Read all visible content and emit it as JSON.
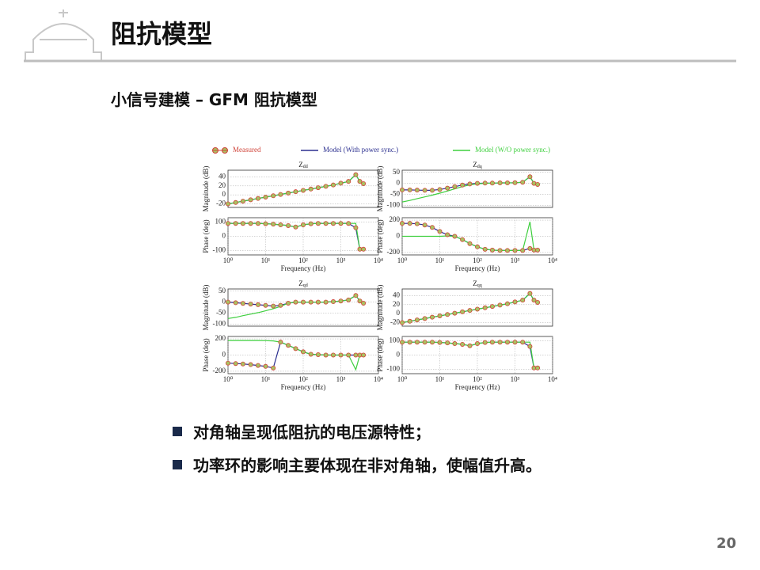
{
  "header": {
    "title": "阻抗模型"
  },
  "subtitle": "小信号建模 – GFM 阻抗模型",
  "legend": [
    {
      "name": "Measured",
      "color": "#d0443a",
      "fill": "#a9c261"
    },
    {
      "name": "Model (With power sync.)",
      "color": "#2b2f8f"
    },
    {
      "name": "Model (W/O power sync.)",
      "color": "#3fcf3f"
    }
  ],
  "chart_data": [
    {
      "type": "line",
      "title": "Zdd",
      "ylabel": "Magnitude (dB)",
      "xscale": "log",
      "xlim": [
        1,
        10000
      ],
      "ylim": [
        -28,
        55
      ],
      "yticks": [
        40,
        20,
        0,
        -20
      ],
      "grid": true,
      "x": [
        1,
        1.6,
        2.5,
        4,
        6.3,
        10,
        16,
        25,
        40,
        63,
        100,
        160,
        250,
        400,
        630,
        1000,
        1600,
        2500,
        3200,
        4000
      ],
      "series": [
        {
          "values": [
            -20,
            -17,
            -14,
            -11,
            -8,
            -5,
            -2,
            1,
            4,
            7,
            10,
            13,
            16,
            19,
            22,
            26,
            30,
            45,
            30,
            25
          ]
        },
        {
          "values": [
            -20,
            -17,
            -14,
            -11,
            -8,
            -5,
            -2,
            1,
            4,
            7,
            10,
            13,
            16,
            19,
            22,
            26,
            30,
            45,
            30,
            25
          ]
        },
        {
          "values": [
            -20,
            -17,
            -14,
            -11,
            -8,
            -5,
            -2,
            1,
            4,
            7,
            10,
            13,
            16,
            19,
            22,
            26,
            30,
            45,
            30,
            25
          ]
        }
      ]
    },
    {
      "type": "line",
      "ylabel": "Phase (deg)",
      "xlabel": "Frequency (Hz)",
      "xscale": "log",
      "xlim": [
        1,
        10000
      ],
      "xticks": [
        {
          "value": 1,
          "label": "10⁰"
        },
        {
          "value": 10,
          "label": "10¹"
        },
        {
          "value": 100,
          "label": "10²"
        },
        {
          "value": 1000,
          "label": "10³"
        },
        {
          "value": 10000,
          "label": "10⁴"
        }
      ],
      "ylim": [
        -130,
        130
      ],
      "yticks": [
        100,
        0,
        -100
      ],
      "grid": true,
      "x": [
        1,
        1.6,
        2.5,
        4,
        6.3,
        10,
        16,
        25,
        40,
        63,
        100,
        160,
        250,
        400,
        630,
        1000,
        1600,
        2500,
        3200,
        4000
      ],
      "series": [
        {
          "values": [
            90,
            90,
            90,
            90,
            90,
            88,
            85,
            80,
            75,
            65,
            80,
            88,
            90,
            90,
            90,
            90,
            90,
            60,
            -90,
            -90
          ]
        },
        {
          "values": [
            90,
            90,
            90,
            90,
            90,
            88,
            85,
            80,
            75,
            65,
            80,
            88,
            90,
            90,
            90,
            90,
            90,
            60,
            -90,
            -90
          ]
        },
        {
          "values": [
            90,
            90,
            90,
            90,
            90,
            88,
            85,
            80,
            75,
            65,
            80,
            88,
            90,
            90,
            90,
            90,
            90,
            90,
            -90,
            -90
          ]
        }
      ]
    },
    {
      "type": "line",
      "title": "Zdq",
      "ylabel": "Magnitude (dB)",
      "xscale": "log",
      "xlim": [
        1,
        10000
      ],
      "ylim": [
        -110,
        60
      ],
      "yticks": [
        50,
        0,
        -50,
        -100
      ],
      "grid": true,
      "x": [
        1,
        1.6,
        2.5,
        4,
        6.3,
        10,
        16,
        25,
        40,
        63,
        100,
        160,
        250,
        400,
        630,
        1000,
        1600,
        2500,
        3200,
        4000
      ],
      "series": [
        {
          "values": [
            -30,
            -30,
            -31,
            -32,
            -32,
            -28,
            -22,
            -15,
            -8,
            -3,
            0,
            1,
            1,
            2,
            2,
            3,
            5,
            30,
            0,
            -5
          ]
        },
        {
          "values": [
            -30,
            -30,
            -31,
            -32,
            -32,
            -28,
            -22,
            -15,
            -8,
            -3,
            0,
            1,
            1,
            2,
            2,
            3,
            5,
            30,
            0,
            -5
          ]
        },
        {
          "values": [
            -85,
            -78,
            -70,
            -62,
            -54,
            -45,
            -35,
            -25,
            -15,
            -7,
            -2,
            0,
            1,
            2,
            2,
            3,
            5,
            30,
            0,
            -5
          ]
        }
      ]
    },
    {
      "type": "line",
      "ylabel": "Phase (deg)",
      "xlabel": "Frequency (Hz)",
      "xscale": "log",
      "xlim": [
        1,
        10000
      ],
      "xticks": [
        {
          "value": 1,
          "label": "10⁰"
        },
        {
          "value": 10,
          "label": "10¹"
        },
        {
          "value": 100,
          "label": "10²"
        },
        {
          "value": 1000,
          "label": "10³"
        },
        {
          "value": 10000,
          "label": "10⁴"
        }
      ],
      "ylim": [
        -230,
        230
      ],
      "yticks": [
        200,
        0,
        -200
      ],
      "grid": true,
      "x": [
        1,
        1.6,
        2.5,
        4,
        6.3,
        10,
        16,
        25,
        40,
        63,
        100,
        160,
        250,
        400,
        630,
        1000,
        1600,
        2500,
        3200,
        4000
      ],
      "series": [
        {
          "values": [
            160,
            160,
            155,
            140,
            110,
            60,
            20,
            0,
            -40,
            -90,
            -130,
            -160,
            -170,
            -175,
            -175,
            -175,
            -175,
            -150,
            -170,
            -170
          ]
        },
        {
          "values": [
            160,
            160,
            155,
            140,
            110,
            60,
            20,
            0,
            -40,
            -90,
            -130,
            -160,
            -170,
            -175,
            -175,
            -175,
            -175,
            -150,
            -170,
            -170
          ]
        },
        {
          "values": [
            0,
            0,
            0,
            0,
            0,
            0,
            5,
            0,
            -40,
            -90,
            -130,
            -160,
            -170,
            -175,
            -175,
            -175,
            -175,
            180,
            -170,
            -170
          ]
        }
      ]
    },
    {
      "type": "line",
      "title": "Zqd",
      "ylabel": "Magnitude (dB)",
      "xscale": "log",
      "xlim": [
        1,
        10000
      ],
      "ylim": [
        -110,
        60
      ],
      "yticks": [
        50,
        0,
        -50,
        -100
      ],
      "grid": true,
      "x": [
        1,
        1.6,
        2.5,
        4,
        6.3,
        10,
        16,
        25,
        40,
        63,
        100,
        160,
        250,
        400,
        630,
        1000,
        1600,
        2500,
        3200,
        4000
      ],
      "series": [
        {
          "values": [
            0,
            -3,
            -6,
            -9,
            -12,
            -15,
            -18,
            -15,
            -5,
            0,
            0,
            0,
            0,
            0,
            2,
            5,
            10,
            30,
            5,
            -5
          ]
        },
        {
          "values": [
            0,
            -3,
            -6,
            -9,
            -12,
            -15,
            -18,
            -15,
            -5,
            0,
            0,
            0,
            0,
            0,
            2,
            5,
            10,
            30,
            5,
            -5
          ]
        },
        {
          "values": [
            -75,
            -70,
            -62,
            -55,
            -48,
            -40,
            -30,
            -20,
            -5,
            0,
            0,
            0,
            0,
            0,
            2,
            5,
            10,
            30,
            5,
            -5
          ]
        }
      ]
    },
    {
      "type": "line",
      "ylabel": "Phase (deg)",
      "xlabel": "Frequency (Hz)",
      "xscale": "log",
      "xlim": [
        1,
        10000
      ],
      "xticks": [
        {
          "value": 1,
          "label": "10⁰"
        },
        {
          "value": 10,
          "label": "10¹"
        },
        {
          "value": 100,
          "label": "10²"
        },
        {
          "value": 1000,
          "label": "10³"
        },
        {
          "value": 10000,
          "label": "10⁴"
        }
      ],
      "ylim": [
        -230,
        230
      ],
      "yticks": [
        200,
        0,
        -200
      ],
      "grid": true,
      "x": [
        1,
        1.6,
        2.5,
        4,
        6.3,
        10,
        16,
        25,
        40,
        63,
        100,
        160,
        250,
        400,
        630,
        1000,
        1600,
        2500,
        3200,
        4000
      ],
      "series": [
        {
          "values": [
            -100,
            -105,
            -110,
            -118,
            -128,
            -140,
            -160,
            160,
            120,
            80,
            40,
            10,
            5,
            0,
            0,
            0,
            0,
            0,
            0,
            0
          ]
        },
        {
          "values": [
            -100,
            -105,
            -110,
            -118,
            -128,
            -140,
            -160,
            160,
            120,
            80,
            40,
            10,
            5,
            0,
            0,
            0,
            0,
            0,
            0,
            0
          ]
        },
        {
          "values": [
            180,
            180,
            180,
            180,
            180,
            178,
            175,
            160,
            120,
            80,
            40,
            10,
            5,
            0,
            0,
            0,
            0,
            -180,
            0,
            0
          ]
        }
      ]
    },
    {
      "type": "line",
      "title": "Zqq",
      "ylabel": "Magnitude (dB)",
      "xscale": "log",
      "xlim": [
        1,
        10000
      ],
      "ylim": [
        -28,
        55
      ],
      "yticks": [
        40,
        20,
        0,
        -20
      ],
      "grid": true,
      "x": [
        1,
        1.6,
        2.5,
        4,
        6.3,
        10,
        16,
        25,
        40,
        63,
        100,
        160,
        250,
        400,
        630,
        1000,
        1600,
        2500,
        3200,
        4000
      ],
      "series": [
        {
          "values": [
            -20,
            -17,
            -14,
            -11,
            -8,
            -5,
            -2,
            1,
            4,
            7,
            10,
            13,
            16,
            19,
            22,
            26,
            30,
            45,
            30,
            25
          ]
        },
        {
          "values": [
            -20,
            -17,
            -14,
            -11,
            -8,
            -5,
            -2,
            1,
            4,
            7,
            10,
            13,
            16,
            19,
            22,
            26,
            30,
            45,
            30,
            25
          ]
        },
        {
          "values": [
            -20,
            -17,
            -14,
            -11,
            -8,
            -5,
            -2,
            1,
            4,
            7,
            10,
            13,
            16,
            19,
            22,
            26,
            30,
            45,
            30,
            25
          ]
        }
      ]
    },
    {
      "type": "line",
      "ylabel": "Phase (deg)",
      "xlabel": "Frequency (Hz)",
      "xscale": "log",
      "xlim": [
        1,
        10000
      ],
      "xticks": [
        {
          "value": 1,
          "label": "10⁰"
        },
        {
          "value": 10,
          "label": "10¹"
        },
        {
          "value": 100,
          "label": "10²"
        },
        {
          "value": 1000,
          "label": "10³"
        },
        {
          "value": 10000,
          "label": "10⁴"
        }
      ],
      "ylim": [
        -130,
        130
      ],
      "yticks": [
        100,
        0,
        -100
      ],
      "grid": true,
      "x": [
        1,
        1.6,
        2.5,
        4,
        6.3,
        10,
        16,
        25,
        40,
        63,
        100,
        160,
        250,
        400,
        630,
        1000,
        1600,
        2500,
        3200,
        4000
      ],
      "series": [
        {
          "values": [
            90,
            90,
            90,
            90,
            90,
            88,
            85,
            80,
            75,
            65,
            80,
            88,
            90,
            90,
            90,
            90,
            90,
            60,
            -90,
            -90
          ]
        },
        {
          "values": [
            90,
            90,
            90,
            90,
            90,
            88,
            85,
            80,
            75,
            65,
            80,
            88,
            90,
            90,
            90,
            90,
            90,
            60,
            -90,
            -90
          ]
        },
        {
          "values": [
            90,
            90,
            90,
            90,
            90,
            88,
            85,
            80,
            75,
            65,
            80,
            88,
            90,
            90,
            90,
            90,
            90,
            90,
            -90,
            -90
          ]
        }
      ]
    }
  ],
  "bullets": [
    "对角轴呈现低阻抗的电压源特性；",
    "功率环的影响主要体现在非对角轴，使幅值升高。"
  ],
  "page_number": 20
}
